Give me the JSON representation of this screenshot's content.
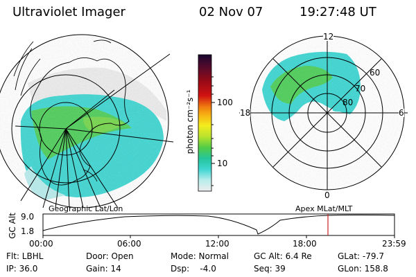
{
  "header": {
    "title": "Ultraviolet Imager",
    "date": "02 Nov 07",
    "time": "19:27:48 UT"
  },
  "colorbar": {
    "label": "photon cm⁻²s⁻¹",
    "tick_labels": [
      "100",
      "10"
    ],
    "colors": [
      "#1a0730",
      "#5a0a2a",
      "#9b0a15",
      "#d01212",
      "#f07a10",
      "#f7b814",
      "#f3ec1e",
      "#b9e32d",
      "#52cc45",
      "#25c59a",
      "#3fd6d2",
      "#b9ecec",
      "#ececec"
    ]
  },
  "left_panel": {
    "label": "Geographic Lat/Lon"
  },
  "right_panel": {
    "label": "Apex MLat/MLT",
    "mlt_labels": {
      "top": "12",
      "left": "18",
      "right": "6",
      "bottom": "0"
    },
    "lat_labels": [
      "60",
      "70",
      "80"
    ]
  },
  "altitude_plot": {
    "y_axis_label": "GC Alt",
    "y_ticks": [
      "9.0",
      "1.8"
    ],
    "x_ticks": [
      "00:00",
      "06:00",
      "12:00",
      "18:00",
      "23:59"
    ],
    "marker_color": "#cc2222"
  },
  "info": {
    "flt": "Flt: LBHL",
    "ip": "IP: 36.0",
    "door": "Door: Open",
    "gain": "Gain: 14",
    "mode": "Mode: Normal",
    "dsp": "Dsp:    -4.0",
    "gc_alt": "GC Alt: 6.4 Re",
    "seq": "Seq: 39",
    "glat": "GLat: -79.7",
    "glon": "GLon: 158.8"
  }
}
